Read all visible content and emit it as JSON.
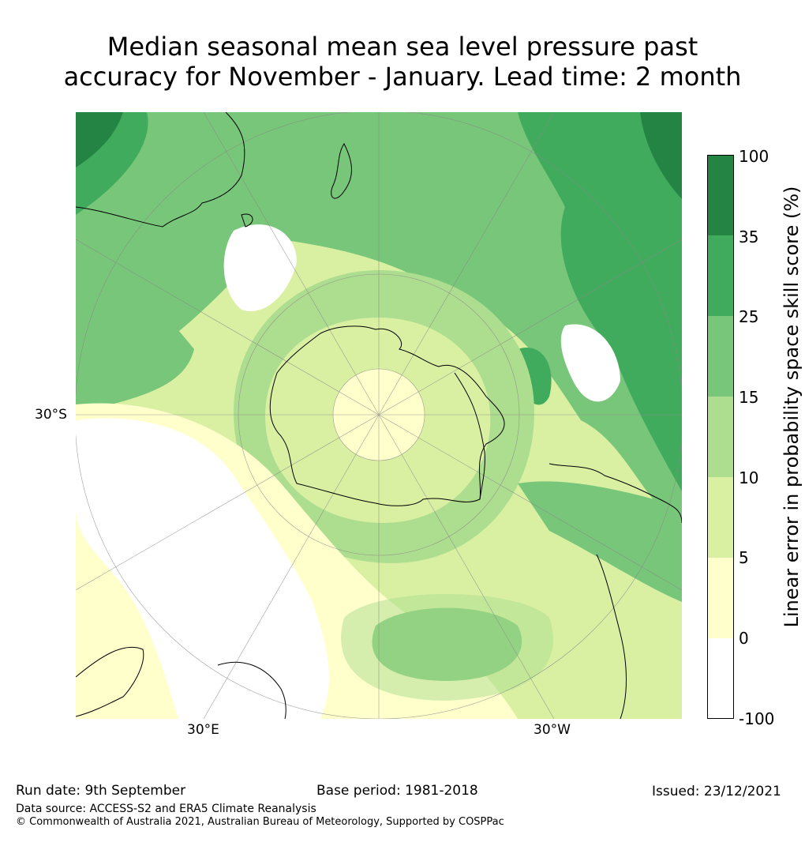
{
  "title": {
    "line1": "Median seasonal mean sea level pressure past",
    "line2": "accuracy for November - January. Lead time: 2 month"
  },
  "map": {
    "lat_label": "30°S",
    "lon_labels": [
      "30°E",
      "30°W"
    ],
    "projection": "south-polar-stereographic"
  },
  "colorbar": {
    "label": "Linear error in probability space skill score (%)",
    "ticks": [
      "100",
      "35",
      "25",
      "15",
      "10",
      "5",
      "0",
      "-100"
    ],
    "bins": [
      {
        "range": "-100 to 0",
        "color": "#ffffff"
      },
      {
        "range": "0 to 5",
        "color": "#ffffcc"
      },
      {
        "range": "5 to 10",
        "color": "#d9f0a3"
      },
      {
        "range": "10 to 15",
        "color": "#addd8e"
      },
      {
        "range": "15 to 25",
        "color": "#78c679"
      },
      {
        "range": "25 to 35",
        "color": "#41ab5d"
      },
      {
        "range": "35 to 100",
        "color": "#238443"
      }
    ]
  },
  "footer": {
    "run_date": "Run date: 9th September",
    "base_period": "Base period: 1981-2018",
    "issued": "Issued: 23/12/2021",
    "data_source": "Data source: ACCESS-S2 and ERA5 Climate Reanalysis",
    "copyright": "© Commonwealth of Australia 2021, Australian Bureau of Meteorology, Supported by COSPPac"
  }
}
